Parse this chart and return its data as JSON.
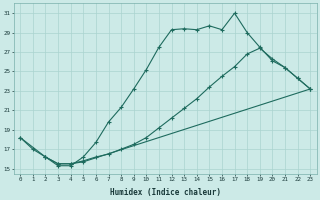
{
  "xlabel": "Humidex (Indice chaleur)",
  "background_color": "#cceae7",
  "grid_color": "#aad4d0",
  "line_color": "#1e6b5e",
  "xlim": [
    -0.5,
    23.5
  ],
  "ylim": [
    14.5,
    32.0
  ],
  "yticks": [
    15,
    17,
    19,
    21,
    23,
    25,
    27,
    29,
    31
  ],
  "xticks": [
    0,
    1,
    2,
    3,
    4,
    5,
    6,
    7,
    8,
    9,
    10,
    11,
    12,
    13,
    14,
    15,
    16,
    17,
    18,
    19,
    20,
    21,
    22,
    23
  ],
  "line1_x": [
    0,
    1,
    2,
    3,
    4,
    5,
    6,
    7,
    8,
    9,
    10,
    11,
    12,
    13,
    14,
    15,
    16,
    17,
    18,
    19,
    20,
    21,
    22,
    23
  ],
  "line1_y": [
    18.2,
    17.0,
    16.2,
    15.3,
    15.3,
    16.2,
    17.7,
    19.8,
    21.3,
    23.2,
    25.2,
    27.5,
    29.3,
    29.4,
    29.3,
    29.7,
    29.3,
    31.0,
    29.0,
    27.5,
    26.1,
    25.4,
    24.3,
    23.2
  ],
  "line2_x": [
    2,
    3,
    4,
    5,
    6,
    7,
    8,
    9,
    10,
    11,
    12,
    13,
    14,
    15,
    16,
    17,
    18,
    19,
    20,
    21,
    22,
    23
  ],
  "line2_y": [
    16.2,
    15.5,
    15.5,
    15.8,
    16.2,
    16.5,
    17.0,
    17.5,
    18.2,
    19.2,
    20.2,
    21.2,
    22.2,
    23.4,
    24.5,
    25.5,
    26.8,
    27.4,
    26.3,
    25.4,
    24.3,
    23.2
  ],
  "line3_x": [
    0,
    2,
    3,
    4,
    5,
    23
  ],
  "line3_y": [
    18.2,
    16.2,
    15.5,
    15.5,
    15.7,
    23.2
  ],
  "figsize": [
    3.2,
    2.0
  ],
  "dpi": 100
}
